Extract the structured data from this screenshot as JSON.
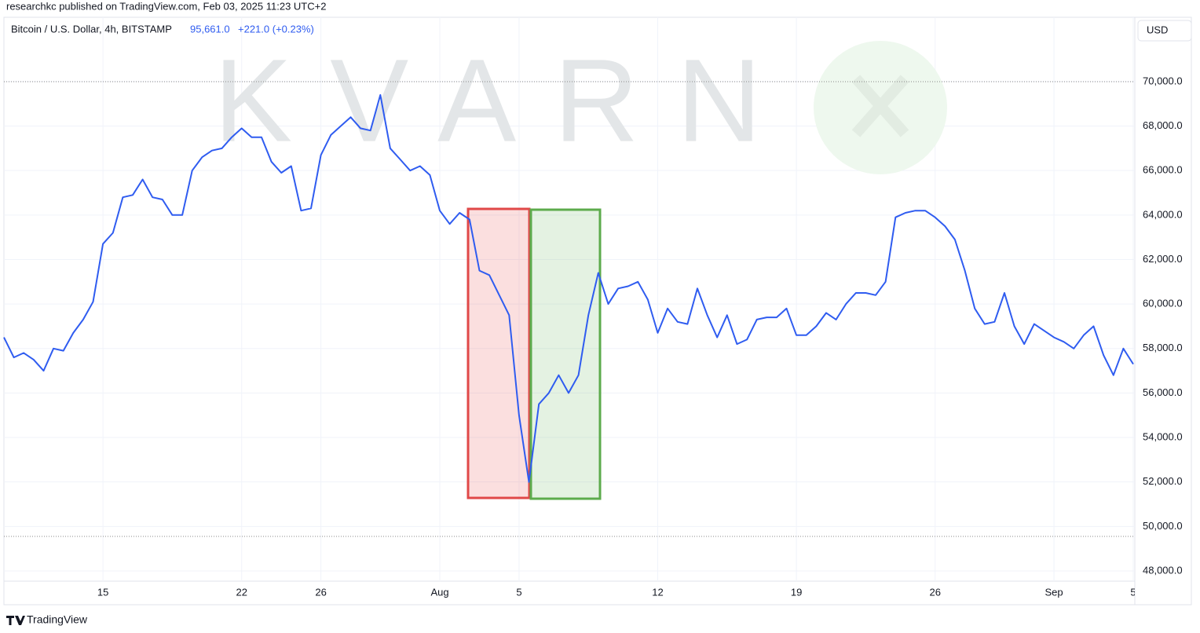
{
  "header": {
    "publisher": "researchkc published on TradingView.com, Feb 03, 2025 11:23 UTC+2"
  },
  "legend": {
    "symbol": "Bitcoin / U.S. Dollar, 4h, BITSTAMP",
    "price": "95,661.0",
    "change": "+221.0 (+0.23%)"
  },
  "currency": "USD",
  "watermark": "KVARN",
  "footer": "TradingView",
  "chart_data": {
    "type": "line",
    "color": "#2f5cf0",
    "categories": [
      null,
      null,
      null,
      null,
      null,
      null,
      null,
      null,
      null,
      null,
      "15",
      null,
      null,
      null,
      null,
      null,
      null,
      null,
      null,
      null,
      null,
      null,
      null,
      null,
      "22",
      null,
      null,
      null,
      null,
      null,
      null,
      null,
      "26",
      null,
      null,
      null,
      null,
      null,
      null,
      null,
      null,
      null,
      null,
      null,
      "Aug",
      null,
      null,
      null,
      null,
      null,
      null,
      null,
      "5",
      null,
      null,
      null,
      null,
      null,
      null,
      null,
      null,
      null,
      null,
      null,
      null,
      null,
      "12",
      null,
      null,
      null,
      null,
      null,
      null,
      null,
      null,
      null,
      null,
      null,
      null,
      null,
      "19",
      null,
      null,
      null,
      null,
      null,
      null,
      null,
      null,
      null,
      null,
      null,
      null,
      null,
      "26",
      null,
      null,
      null,
      null,
      null,
      null,
      null,
      null,
      null,
      null,
      null,
      "Sep",
      null,
      null,
      null,
      null,
      null,
      null,
      null,
      "5"
    ],
    "values": [
      58500,
      57600,
      57800,
      57500,
      57000,
      58000,
      57900,
      58700,
      59300,
      60100,
      62700,
      63200,
      64800,
      64900,
      65600,
      64800,
      64700,
      64000,
      64000,
      66000,
      66600,
      66900,
      67000,
      67500,
      67900,
      67500,
      67500,
      66400,
      65900,
      66200,
      64200,
      64300,
      66700,
      67600,
      68000,
      68400,
      67900,
      67800,
      69400,
      67000,
      66500,
      66000,
      66200,
      65800,
      64200,
      63600,
      64100,
      63800,
      61500,
      61300,
      60400,
      59500,
      55000,
      52000,
      55500,
      56000,
      56800,
      56000,
      56800,
      59500,
      61400,
      60000,
      60700,
      60800,
      61000,
      60200,
      58700,
      59800,
      59200,
      59100,
      60700,
      59500,
      58500,
      59500,
      58200,
      58400,
      59300,
      59400,
      59400,
      59800,
      58600,
      58600,
      59000,
      59600,
      59300,
      60000,
      60500,
      60500,
      60400,
      61000,
      63900,
      64100,
      64200,
      64200,
      63900,
      63500,
      62900,
      61500,
      59800,
      59100,
      59200,
      60500,
      59000,
      58200,
      59100,
      58800,
      58500,
      58300,
      58000,
      58600,
      59000,
      57700,
      56800,
      58000,
      57300
    ],
    "ylim": [
      47540,
      72680
    ],
    "yticks": [
      {
        "value": 48000,
        "label": "48,000.0"
      },
      {
        "value": 50000,
        "label": "50,000.0"
      },
      {
        "value": 52000,
        "label": "52,000.0"
      },
      {
        "value": 54000,
        "label": "54,000.0"
      },
      {
        "value": 56000,
        "label": "56,000.0"
      },
      {
        "value": 58000,
        "label": "58,000.0"
      },
      {
        "value": 60000,
        "label": "60,000.0"
      },
      {
        "value": 62000,
        "label": "62,000.0"
      },
      {
        "value": 64000,
        "label": "64,000.0"
      },
      {
        "value": 66000,
        "label": "66,000.0"
      },
      {
        "value": 68000,
        "label": "68,000.0"
      },
      {
        "value": 70000,
        "label": "70,000.0"
      }
    ],
    "grid": true
  }
}
